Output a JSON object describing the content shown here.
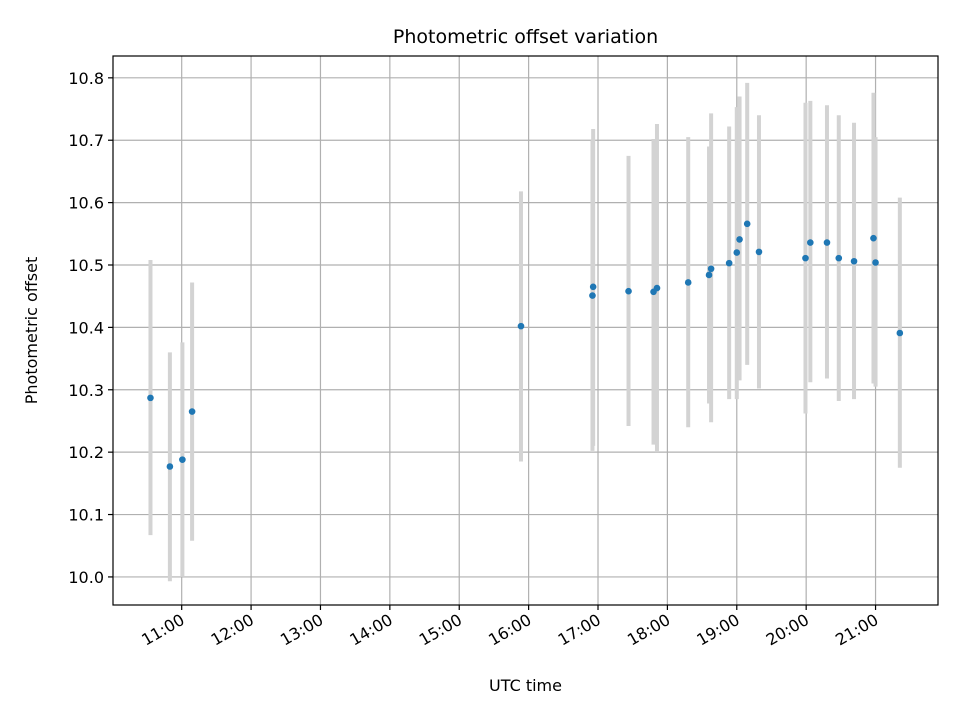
{
  "chart_data": {
    "type": "scatter",
    "title": "Photometric offset variation",
    "xlabel": "UTC time",
    "ylabel": "Photometric offset",
    "x_unit": "UTC hour of day",
    "xlim": [
      10.01,
      21.9
    ],
    "ylim": [
      9.955,
      10.835
    ],
    "x_ticks": [
      {
        "value": 11,
        "label": "11:00"
      },
      {
        "value": 12,
        "label": "12:00"
      },
      {
        "value": 13,
        "label": "13:00"
      },
      {
        "value": 14,
        "label": "14:00"
      },
      {
        "value": 15,
        "label": "15:00"
      },
      {
        "value": 16,
        "label": "16:00"
      },
      {
        "value": 17,
        "label": "17:00"
      },
      {
        "value": 18,
        "label": "18:00"
      },
      {
        "value": 19,
        "label": "19:00"
      },
      {
        "value": 20,
        "label": "20:00"
      },
      {
        "value": 21,
        "label": "21:00"
      }
    ],
    "y_ticks": [
      {
        "value": 10.0,
        "label": "10.0"
      },
      {
        "value": 10.1,
        "label": "10.1"
      },
      {
        "value": 10.2,
        "label": "10.2"
      },
      {
        "value": 10.3,
        "label": "10.3"
      },
      {
        "value": 10.4,
        "label": "10.4"
      },
      {
        "value": 10.5,
        "label": "10.5"
      },
      {
        "value": 10.6,
        "label": "10.6"
      },
      {
        "value": 10.7,
        "label": "10.7"
      },
      {
        "value": 10.8,
        "label": "10.8"
      }
    ],
    "grid": true,
    "colors": {
      "point": "#1f77b4",
      "errorbar": "#d3d3d3",
      "grid": "#b0b0b0",
      "axes": "#000000"
    },
    "series": [
      {
        "points": [
          {
            "x": 10.55,
            "y": 10.287,
            "lo": 10.067,
            "hi": 10.508
          },
          {
            "x": 10.83,
            "y": 10.177,
            "lo": 9.993,
            "hi": 10.36
          },
          {
            "x": 11.01,
            "y": 10.188,
            "lo": 10.0,
            "hi": 10.376
          },
          {
            "x": 11.15,
            "y": 10.265,
            "lo": 10.058,
            "hi": 10.472
          },
          {
            "x": 15.89,
            "y": 10.402,
            "lo": 10.185,
            "hi": 10.618
          },
          {
            "x": 16.92,
            "y": 10.451,
            "lo": 10.202,
            "hi": 10.7
          },
          {
            "x": 16.93,
            "y": 10.465,
            "lo": 10.21,
            "hi": 10.718
          },
          {
            "x": 17.44,
            "y": 10.458,
            "lo": 10.242,
            "hi": 10.675
          },
          {
            "x": 17.8,
            "y": 10.457,
            "lo": 10.212,
            "hi": 10.702
          },
          {
            "x": 17.85,
            "y": 10.463,
            "lo": 10.2,
            "hi": 10.726
          },
          {
            "x": 18.3,
            "y": 10.472,
            "lo": 10.24,
            "hi": 10.705
          },
          {
            "x": 18.6,
            "y": 10.484,
            "lo": 10.278,
            "hi": 10.69
          },
          {
            "x": 18.63,
            "y": 10.494,
            "lo": 10.248,
            "hi": 10.743
          },
          {
            "x": 18.89,
            "y": 10.503,
            "lo": 10.285,
            "hi": 10.722
          },
          {
            "x": 19.0,
            "y": 10.52,
            "lo": 10.285,
            "hi": 10.753
          },
          {
            "x": 19.04,
            "y": 10.541,
            "lo": 10.315,
            "hi": 10.77
          },
          {
            "x": 19.15,
            "y": 10.566,
            "lo": 10.34,
            "hi": 10.792
          },
          {
            "x": 19.32,
            "y": 10.521,
            "lo": 10.302,
            "hi": 10.74
          },
          {
            "x": 19.99,
            "y": 10.511,
            "lo": 10.262,
            "hi": 10.76
          },
          {
            "x": 20.06,
            "y": 10.536,
            "lo": 10.312,
            "hi": 10.763
          },
          {
            "x": 20.3,
            "y": 10.536,
            "lo": 10.318,
            "hi": 10.756
          },
          {
            "x": 20.47,
            "y": 10.511,
            "lo": 10.282,
            "hi": 10.74
          },
          {
            "x": 20.69,
            "y": 10.506,
            "lo": 10.285,
            "hi": 10.728
          },
          {
            "x": 20.97,
            "y": 10.543,
            "lo": 10.31,
            "hi": 10.776
          },
          {
            "x": 21.0,
            "y": 10.504,
            "lo": 10.305,
            "hi": 10.705
          },
          {
            "x": 21.35,
            "y": 10.391,
            "lo": 10.175,
            "hi": 10.608
          }
        ]
      }
    ]
  }
}
